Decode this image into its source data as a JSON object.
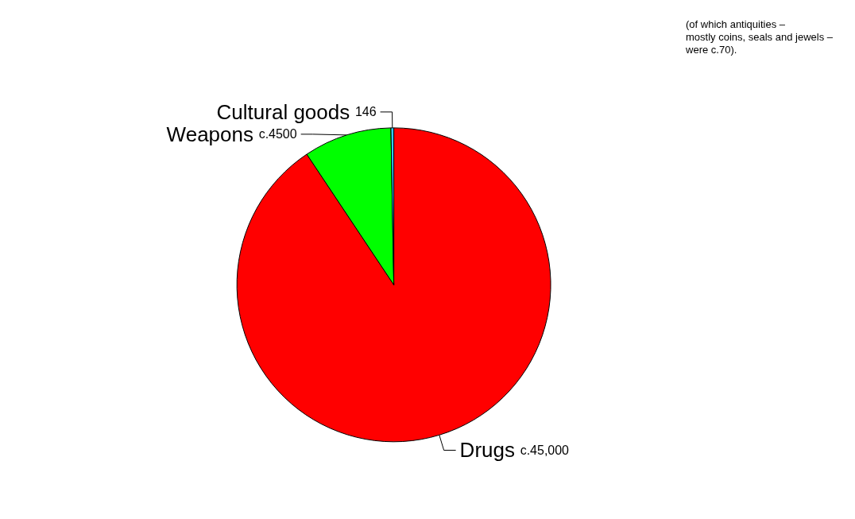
{
  "chart_data": {
    "type": "pie",
    "categories": [
      "Drugs",
      "Weapons",
      "Cultural goods"
    ],
    "values": [
      45000,
      4500,
      146
    ],
    "colors": [
      "#ff0000",
      "#00ff00",
      "#33ccff"
    ],
    "value_labels": [
      "c.45,000",
      "c.4500",
      "146"
    ],
    "annotations": [
      "(of which antiquities –\nmostly coins, seals and jewels –\nwere c.70)."
    ],
    "legend": false
  }
}
